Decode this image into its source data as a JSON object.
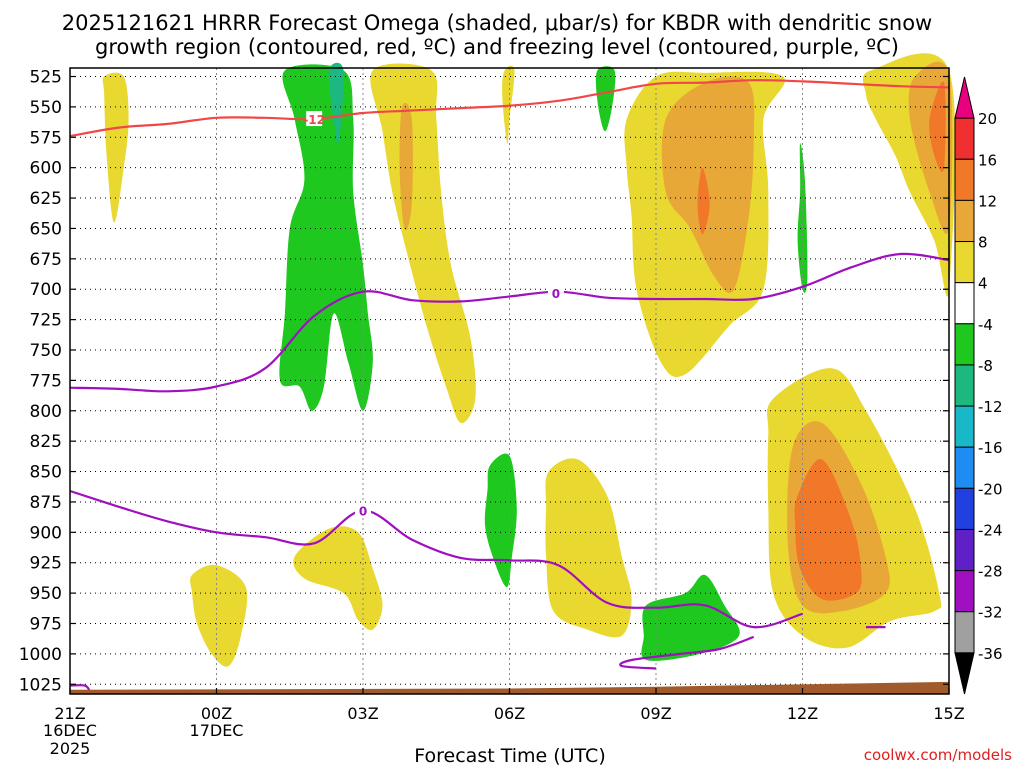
{
  "chart_data": {
    "type": "contour",
    "title_line1": "2025121621 HRRR Forecast Omega (shaded, μbar/s) for KBDR with dendritic snow",
    "title_line2": "growth region (contoured, red, ºC) and freezing level (contoured, purple, ºC)",
    "xlabel": "Forecast Time (UTC)",
    "credit": "coolwx.com/models",
    "y_ticks": [
      525,
      550,
      575,
      600,
      625,
      650,
      675,
      700,
      725,
      750,
      775,
      800,
      825,
      850,
      875,
      900,
      925,
      950,
      975,
      1000,
      1025
    ],
    "y_range_hpa": [
      518,
      1033
    ],
    "x_range_hours": [
      0,
      18
    ],
    "x_ticks": [
      {
        "hour": 0,
        "label": "21Z",
        "sub1": "16DEC",
        "sub2": "2025"
      },
      {
        "hour": 3,
        "label": "00Z",
        "sub1": "17DEC",
        "sub2": ""
      },
      {
        "hour": 6,
        "label": "03Z",
        "sub1": "",
        "sub2": ""
      },
      {
        "hour": 9,
        "label": "06Z",
        "sub1": "",
        "sub2": ""
      },
      {
        "hour": 12,
        "label": "09Z",
        "sub1": "",
        "sub2": ""
      },
      {
        "hour": 15,
        "label": "12Z",
        "sub1": "",
        "sub2": ""
      },
      {
        "hour": 18,
        "label": "15Z",
        "sub1": "",
        "sub2": ""
      }
    ],
    "colorbar": [
      {
        "label": "",
        "color": "#e8007f"
      },
      {
        "label": "20",
        "color": "#f03030"
      },
      {
        "label": "16",
        "color": "#f07828"
      },
      {
        "label": "12",
        "color": "#e8a838"
      },
      {
        "label": "8",
        "color": "#e8d830"
      },
      {
        "label": "4",
        "color": "#ffffff"
      },
      {
        "label": "-4",
        "color": "#1ec81e"
      },
      {
        "label": "-8",
        "color": "#1cb880"
      },
      {
        "label": "-12",
        "color": "#18b8c8"
      },
      {
        "label": "-16",
        "color": "#1e8cf0"
      },
      {
        "label": "-20",
        "color": "#2040e0"
      },
      {
        "label": "-24",
        "color": "#6020c8"
      },
      {
        "label": "-28",
        "color": "#a010c0"
      },
      {
        "label": "-32",
        "color": "#a0a0a0"
      },
      {
        "label": "-36",
        "color": "#000000"
      }
    ],
    "colors": {
      "positive_weak": "#e8d830",
      "positive_mod": "#e8a838",
      "positive_strong": "#f07828",
      "negative_weak": "#1ec81e",
      "negative_mod": "#1cb880",
      "dgz_line": "#f04848",
      "freezing_line": "#a010c0",
      "terrain": "#a05a2c"
    },
    "dgz_contour_label": "-12",
    "freezing_contour_label": "0",
    "dgz_contour": [
      [
        0,
        574
      ],
      [
        1,
        567
      ],
      [
        2,
        564
      ],
      [
        3,
        559
      ],
      [
        4,
        559
      ],
      [
        5,
        560
      ],
      [
        6,
        555
      ],
      [
        7,
        553
      ],
      [
        8,
        551
      ],
      [
        9,
        549
      ],
      [
        10,
        545
      ],
      [
        11,
        538
      ],
      [
        12,
        531
      ],
      [
        13,
        530
      ],
      [
        14,
        528
      ],
      [
        15,
        529
      ],
      [
        16,
        531
      ],
      [
        17,
        533
      ],
      [
        18,
        534
      ]
    ],
    "freezing_upper": [
      [
        0,
        781
      ],
      [
        1,
        782
      ],
      [
        2,
        784
      ],
      [
        3,
        780
      ],
      [
        4,
        765
      ],
      [
        5,
        722
      ],
      [
        6,
        702
      ],
      [
        7,
        709
      ],
      [
        8,
        710
      ],
      [
        9,
        706
      ],
      [
        10,
        702
      ],
      [
        11,
        707
      ],
      [
        12,
        708
      ],
      [
        13,
        708
      ],
      [
        14,
        708
      ],
      [
        15,
        698
      ],
      [
        16,
        682
      ],
      [
        17,
        671
      ],
      [
        18,
        676
      ]
    ],
    "freezing_lower": [
      [
        0,
        866
      ],
      [
        1,
        879
      ],
      [
        2,
        891
      ],
      [
        3,
        900
      ],
      [
        4,
        904
      ],
      [
        5,
        909
      ],
      [
        6,
        882
      ],
      [
        7,
        906
      ],
      [
        8,
        921
      ],
      [
        9,
        923
      ],
      [
        10,
        927
      ],
      [
        11,
        958
      ],
      [
        12,
        962
      ],
      [
        13,
        960
      ],
      [
        14,
        978
      ],
      [
        15,
        967
      ]
    ],
    "shaded_regions": [
      {
        "color": "positive_weak",
        "points": [
          [
            0.7,
            525
          ],
          [
            1.1,
            525
          ],
          [
            1.2,
            560
          ],
          [
            1.1,
            600
          ],
          [
            0.9,
            645
          ],
          [
            0.75,
            590
          ],
          [
            0.7,
            540
          ]
        ]
      },
      {
        "color": "negative_weak",
        "points": [
          [
            4.4,
            520
          ],
          [
            5.6,
            520
          ],
          [
            5.8,
            560
          ],
          [
            5.8,
            620
          ],
          [
            6.0,
            680
          ],
          [
            6.1,
            720
          ],
          [
            6.2,
            760
          ],
          [
            6.0,
            800
          ],
          [
            5.7,
            760
          ],
          [
            5.4,
            720
          ],
          [
            5.2,
            780
          ],
          [
            4.95,
            800
          ],
          [
            4.7,
            780
          ],
          [
            4.3,
            775
          ],
          [
            4.4,
            720
          ],
          [
            4.5,
            650
          ],
          [
            4.8,
            610
          ],
          [
            4.6,
            560
          ]
        ]
      },
      {
        "color": "negative_mod",
        "points": [
          [
            5.3,
            520
          ],
          [
            5.6,
            520
          ],
          [
            5.5,
            580
          ],
          [
            5.4,
            560
          ]
        ]
      },
      {
        "color": "positive_weak",
        "points": [
          [
            6.2,
            520
          ],
          [
            7.4,
            520
          ],
          [
            7.5,
            560
          ],
          [
            7.6,
            620
          ],
          [
            7.8,
            680
          ],
          [
            8.2,
            740
          ],
          [
            8.3,
            790
          ],
          [
            8.0,
            810
          ],
          [
            7.7,
            780
          ],
          [
            7.3,
            730
          ],
          [
            6.9,
            670
          ],
          [
            6.6,
            620
          ],
          [
            6.4,
            570
          ]
        ]
      },
      {
        "color": "positive_mod",
        "points": [
          [
            6.8,
            550
          ],
          [
            7.0,
            560
          ],
          [
            7.0,
            630
          ],
          [
            6.85,
            650
          ],
          [
            6.75,
            600
          ]
        ]
      },
      {
        "color": "positive_weak",
        "points": [
          [
            8.9,
            520
          ],
          [
            9.1,
            520
          ],
          [
            9.0,
            560
          ],
          [
            8.95,
            580
          ],
          [
            8.85,
            540
          ]
        ]
      },
      {
        "color": "negative_weak",
        "points": [
          [
            10.8,
            520
          ],
          [
            11.15,
            520
          ],
          [
            11.1,
            550
          ],
          [
            10.95,
            570
          ],
          [
            10.8,
            545
          ]
        ]
      },
      {
        "color": "positive_weak",
        "points": [
          [
            11.4,
            560
          ],
          [
            12.0,
            525
          ],
          [
            13.0,
            522
          ],
          [
            14.6,
            525
          ],
          [
            14.2,
            560
          ],
          [
            14.3,
            620
          ],
          [
            14.2,
            700
          ],
          [
            13.5,
            730
          ],
          [
            12.6,
            770
          ],
          [
            12.1,
            760
          ],
          [
            11.6,
            700
          ],
          [
            11.5,
            640
          ],
          [
            11.4,
            600
          ]
        ]
      },
      {
        "color": "positive_mod",
        "points": [
          [
            12.2,
            560
          ],
          [
            13.0,
            530
          ],
          [
            13.9,
            530
          ],
          [
            14.0,
            580
          ],
          [
            13.9,
            640
          ],
          [
            13.6,
            700
          ],
          [
            13.2,
            690
          ],
          [
            12.7,
            650
          ],
          [
            12.2,
            620
          ]
        ]
      },
      {
        "color": "positive_strong",
        "points": [
          [
            12.95,
            600
          ],
          [
            13.1,
            630
          ],
          [
            12.95,
            655
          ],
          [
            12.85,
            630
          ]
        ]
      },
      {
        "color": "negative_weak",
        "points": [
          [
            14.95,
            580
          ],
          [
            15.05,
            610
          ],
          [
            15.1,
            690
          ],
          [
            15.0,
            700
          ],
          [
            14.9,
            660
          ],
          [
            14.95,
            620
          ]
        ]
      },
      {
        "color": "positive_weak",
        "points": [
          [
            16.4,
            520
          ],
          [
            18.0,
            520
          ],
          [
            18.0,
            700
          ],
          [
            17.7,
            660
          ],
          [
            17.2,
            620
          ],
          [
            16.9,
            590
          ],
          [
            16.5,
            560
          ],
          [
            16.3,
            540
          ]
        ]
      },
      {
        "color": "positive_mod",
        "points": [
          [
            17.3,
            525
          ],
          [
            18.0,
            523
          ],
          [
            18.0,
            650
          ],
          [
            17.6,
            620
          ],
          [
            17.2,
            560
          ]
        ]
      },
      {
        "color": "positive_strong",
        "points": [
          [
            17.6,
            560
          ],
          [
            17.9,
            530
          ],
          [
            17.9,
            600
          ],
          [
            17.7,
            590
          ]
        ]
      },
      {
        "color": "positive_weak",
        "points": [
          [
            14.4,
            790
          ],
          [
            15.6,
            765
          ],
          [
            16.3,
            800
          ],
          [
            17.3,
            880
          ],
          [
            17.8,
            950
          ],
          [
            17.7,
            965
          ],
          [
            16.8,
            973
          ],
          [
            15.9,
            995
          ],
          [
            15.0,
            985
          ],
          [
            14.4,
            950
          ],
          [
            14.3,
            880
          ],
          [
            14.3,
            820
          ]
        ]
      },
      {
        "color": "positive_mod",
        "points": [
          [
            14.8,
            830
          ],
          [
            15.4,
            810
          ],
          [
            16.2,
            860
          ],
          [
            16.7,
            920
          ],
          [
            16.7,
            950
          ],
          [
            15.8,
            965
          ],
          [
            15.0,
            960
          ],
          [
            14.7,
            910
          ]
        ]
      },
      {
        "color": "positive_strong",
        "points": [
          [
            14.9,
            870
          ],
          [
            15.4,
            840
          ],
          [
            16.0,
            890
          ],
          [
            16.2,
            930
          ],
          [
            16.1,
            950
          ],
          [
            15.4,
            955
          ],
          [
            14.95,
            930
          ],
          [
            14.85,
            895
          ]
        ]
      },
      {
        "color": "negative_weak",
        "points": [
          [
            8.6,
            845
          ],
          [
            9.0,
            837
          ],
          [
            9.15,
            880
          ],
          [
            9.05,
            920
          ],
          [
            8.95,
            945
          ],
          [
            8.7,
            925
          ],
          [
            8.5,
            895
          ],
          [
            8.55,
            865
          ]
        ]
      },
      {
        "color": "positive_weak",
        "points": [
          [
            9.8,
            850
          ],
          [
            10.4,
            840
          ],
          [
            11.0,
            870
          ],
          [
            11.3,
            920
          ],
          [
            11.5,
            955
          ],
          [
            11.3,
            985
          ],
          [
            10.6,
            980
          ],
          [
            9.9,
            965
          ],
          [
            9.75,
            920
          ],
          [
            9.75,
            880
          ]
        ]
      },
      {
        "color": "positive_weak",
        "points": [
          [
            4.6,
            920
          ],
          [
            5.3,
            897
          ],
          [
            5.9,
            900
          ],
          [
            6.2,
            930
          ],
          [
            6.4,
            960
          ],
          [
            6.2,
            980
          ],
          [
            5.9,
            972
          ],
          [
            5.6,
            950
          ],
          [
            4.8,
            938
          ]
        ]
      },
      {
        "color": "positive_weak",
        "points": [
          [
            2.5,
            935
          ],
          [
            3.0,
            927
          ],
          [
            3.6,
            945
          ],
          [
            3.5,
            985
          ],
          [
            3.25,
            1010
          ],
          [
            2.9,
            1000
          ],
          [
            2.6,
            975
          ],
          [
            2.5,
            950
          ]
        ]
      },
      {
        "color": "negative_weak",
        "points": [
          [
            11.8,
            960
          ],
          [
            12.6,
            950
          ],
          [
            13.0,
            935
          ],
          [
            13.4,
            960
          ],
          [
            13.7,
            985
          ],
          [
            12.9,
            1000
          ],
          [
            11.8,
            1005
          ],
          [
            11.75,
            985
          ]
        ]
      }
    ]
  }
}
